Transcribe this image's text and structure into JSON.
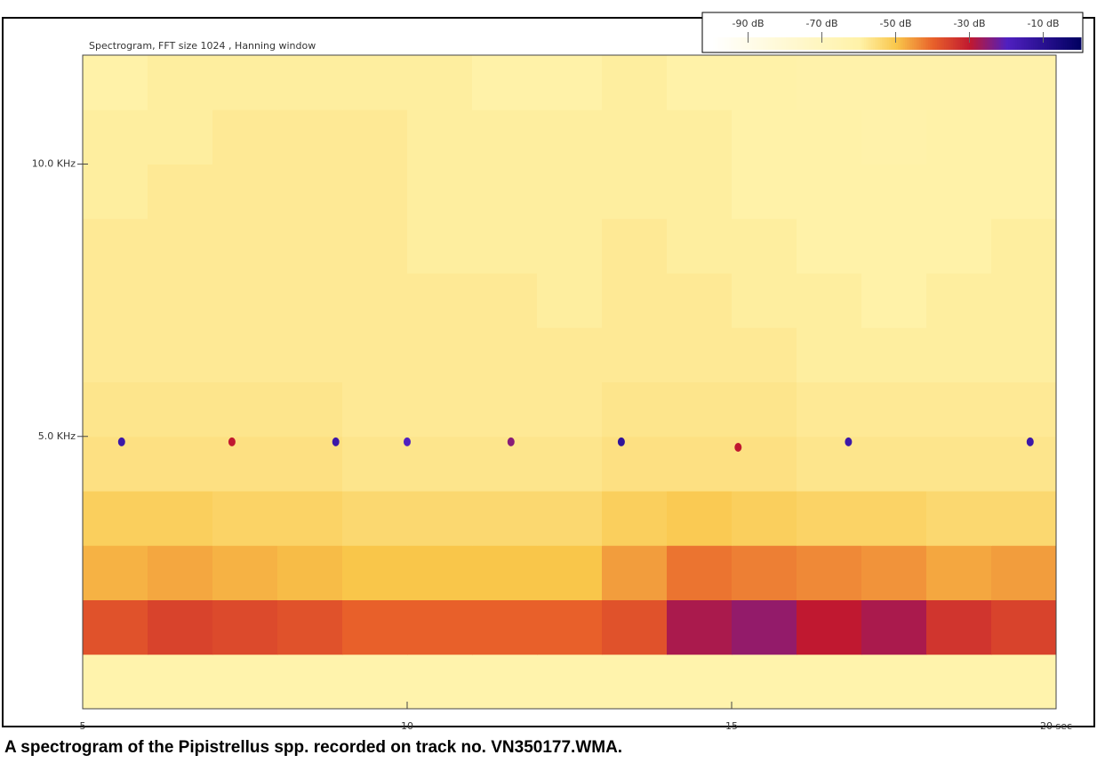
{
  "chart_data": {
    "type": "spectrogram",
    "annotation": "Spectrogram, FFT size 1024 , Hanning window",
    "caption": "A spectrogram of the Pipistrellus spp. recorded on track no. VN350177.WMA.",
    "xlim": [
      5,
      20
    ],
    "xticks": [
      5,
      10,
      15,
      {
        "value": 20,
        "label": "20 sec"
      }
    ],
    "ylim": [
      0,
      12
    ],
    "yticks": [
      {
        "value": 5,
        "label": "5.0 KHz"
      },
      {
        "value": 10,
        "label": "10.0 KHz"
      }
    ],
    "time_bins": [
      5,
      6,
      7,
      8,
      9,
      10,
      11,
      12,
      13,
      14,
      15,
      16,
      17,
      18,
      19,
      20
    ],
    "freq_bins": [
      0,
      1,
      2,
      3,
      4,
      5,
      6,
      7,
      8,
      9,
      10,
      11,
      12
    ],
    "values": [
      [
        -62,
        -62,
        -62,
        -62,
        -62,
        -62,
        -62,
        -62,
        -62,
        -62,
        -62,
        -62,
        -62,
        -62,
        -62
      ],
      [
        -38,
        -36,
        -37,
        -38,
        -40,
        -40,
        -40,
        -40,
        -38,
        -28,
        -26,
        -30,
        -28,
        -34,
        -36
      ],
      [
        -48,
        -47,
        -48,
        -49,
        -50,
        -50,
        -50,
        -50,
        -46,
        -42,
        -43,
        -44,
        -45,
        -47,
        -46
      ],
      [
        -52,
        -52,
        -53,
        -53,
        -54,
        -54,
        -54,
        -54,
        -52,
        -51,
        -52,
        -53,
        -53,
        -54,
        -54
      ],
      [
        -56,
        -56,
        -56,
        -56,
        -57,
        -57,
        -57,
        -57,
        -56,
        -56,
        -56,
        -57,
        -57,
        -57,
        -57
      ],
      [
        -57,
        -57,
        -57,
        -57,
        -58,
        -58,
        -58,
        -58,
        -57,
        -57,
        -57,
        -58,
        -58,
        -58,
        -58
      ],
      [
        -58,
        -58,
        -58,
        -58,
        -58,
        -58,
        -58,
        -58,
        -58,
        -58,
        -58,
        -59,
        -59,
        -59,
        -59
      ],
      [
        -58,
        -58,
        -58,
        -58,
        -58,
        -58,
        -58,
        -59,
        -58,
        -58,
        -59,
        -59,
        -60,
        -59,
        -59
      ],
      [
        -58,
        -58,
        -58,
        -58,
        -58,
        -59,
        -59,
        -59,
        -58,
        -59,
        -59,
        -60,
        -60,
        -60,
        -59
      ],
      [
        -59,
        -58,
        -58,
        -58,
        -58,
        -59,
        -59,
        -59,
        -59,
        -59,
        -60,
        -60,
        -60,
        -60,
        -60
      ],
      [
        -59,
        -59,
        -58,
        -58,
        -58,
        -59,
        -59,
        -59,
        -59,
        -59,
        -60,
        -60,
        -61,
        -60,
        -60
      ],
      [
        -60,
        -59,
        -59,
        -59,
        -59,
        -59,
        -60,
        -60,
        -59,
        -60,
        -60,
        -61,
        -61,
        -61,
        -61
      ]
    ],
    "points": {
      "x": [
        5.6,
        7.3,
        8.9,
        10.0,
        11.6,
        13.3,
        15.1,
        16.8,
        19.6
      ],
      "y": [
        4.9,
        4.9,
        4.9,
        4.9,
        4.9,
        4.9,
        4.8,
        4.9,
        4.9
      ],
      "values": [
        -15,
        -30,
        -15,
        -20,
        -25,
        -12,
        -30,
        -15,
        -15
      ]
    },
    "colorbar": {
      "lim": [
        -100,
        0
      ],
      "ticks": [
        {
          "value": -90,
          "label": "-90 dB"
        },
        {
          "value": -70,
          "label": "-70 dB"
        },
        {
          "value": -50,
          "label": "-50 dB"
        },
        {
          "value": -30,
          "label": "-30 dB"
        },
        {
          "value": -10,
          "label": "-10 dB"
        }
      ],
      "colormap": [
        {
          "value": -100,
          "color": "#ffffff"
        },
        {
          "value": -60,
          "color": "#fff2a8"
        },
        {
          "value": -50,
          "color": "#f9c64a"
        },
        {
          "value": -40,
          "color": "#e8602a"
        },
        {
          "value": -30,
          "color": "#c01830"
        },
        {
          "value": -20,
          "color": "#5020c0"
        },
        {
          "value": 0,
          "color": "#000060"
        }
      ]
    }
  }
}
